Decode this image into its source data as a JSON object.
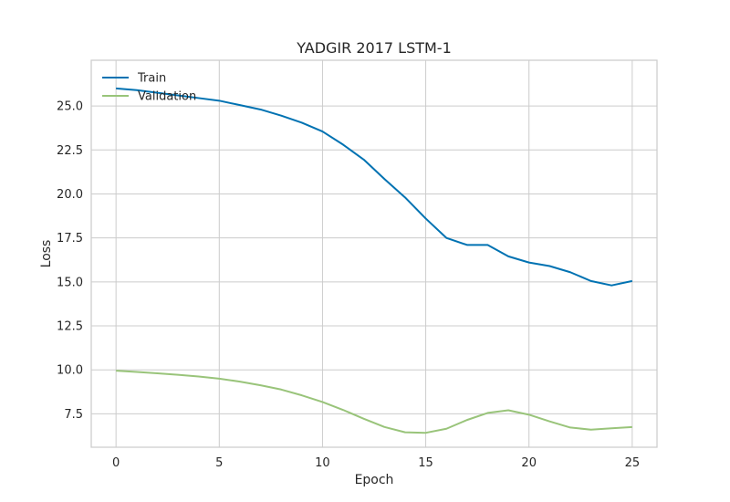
{
  "chart_data": {
    "type": "line",
    "title": "YADGIR 2017 LSTM-1",
    "xlabel": "Epoch",
    "ylabel": "Loss",
    "xlim": [
      -1.2,
      26.2
    ],
    "ylim": [
      5.6,
      27.6
    ],
    "xticks": [
      0,
      5,
      10,
      15,
      20,
      25
    ],
    "yticks": [
      7.5,
      10.0,
      12.5,
      15.0,
      17.5,
      20.0,
      22.5,
      25.0
    ],
    "grid": true,
    "legend": "top-left",
    "x": [
      0,
      1,
      2,
      3,
      4,
      5,
      6,
      7,
      8,
      9,
      10,
      11,
      12,
      13,
      14,
      15,
      16,
      17,
      18,
      19,
      20,
      21,
      22,
      23,
      24,
      25
    ],
    "series": [
      {
        "name": "Train",
        "color": "#0072b2",
        "values": [
          26.0,
          25.9,
          25.75,
          25.6,
          25.45,
          25.3,
          25.05,
          24.8,
          24.45,
          24.05,
          23.55,
          22.8,
          21.95,
          20.85,
          19.8,
          18.6,
          17.5,
          17.1,
          17.1,
          16.45,
          16.1,
          15.9,
          15.55,
          15.05,
          14.8,
          15.05
        ]
      },
      {
        "name": "Validation",
        "color": "#99c47a",
        "values": [
          9.95,
          9.88,
          9.8,
          9.72,
          9.62,
          9.5,
          9.33,
          9.12,
          8.88,
          8.55,
          8.17,
          7.72,
          7.22,
          6.75,
          6.45,
          6.42,
          6.65,
          7.15,
          7.55,
          7.7,
          7.45,
          7.07,
          6.72,
          6.6,
          6.68,
          6.75
        ]
      }
    ]
  }
}
